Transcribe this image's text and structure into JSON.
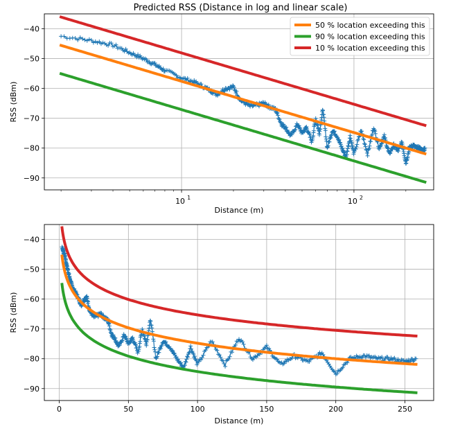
{
  "figure_title": "Predicted RSS (Distance in log and linear scale)",
  "colors": {
    "measured": "#1f77b4",
    "p50": "#ff7f0e",
    "p90": "#2ca02c",
    "p10": "#d62728"
  },
  "chart_data": [
    {
      "type": "line",
      "title": "Predicted RSS (Distance in log and linear scale)",
      "xlabel": "Distance (m)",
      "ylabel": "RSS (dBm)",
      "xscale": "log",
      "xlim": [
        1.6,
        290
      ],
      "ylim": [
        -94,
        -35
      ],
      "yticks": [
        -40,
        -50,
        -60,
        -70,
        -80,
        -90
      ],
      "xticks_labels": [
        {
          "value": 10,
          "base": "10",
          "exp": "1"
        },
        {
          "value": 100,
          "base": "10",
          "exp": "2"
        }
      ],
      "grid": true,
      "legend": "top-right",
      "legend_entries": [
        "50 % location exceeding this",
        "90 % location exceeding this",
        "10 % location exceeding this"
      ],
      "series": [
        {
          "name": "",
          "kind": "measured",
          "marker": "+",
          "x": [
            2,
            3,
            4,
            5,
            6,
            7,
            8,
            10,
            12,
            14,
            16,
            18,
            20,
            22,
            25,
            28,
            30,
            32,
            35,
            38,
            40,
            43,
            47,
            50,
            53,
            57,
            60,
            63,
            66,
            70,
            75,
            80,
            85,
            90,
            95,
            100,
            110,
            120,
            130,
            140,
            150,
            160,
            170,
            180,
            190,
            200,
            210,
            220,
            230,
            240,
            250,
            258
          ],
          "y": [
            -42.5,
            -44,
            -45.5,
            -48,
            -50,
            -52,
            -54,
            -56.5,
            -58,
            -60,
            -62,
            -60,
            -59.5,
            -64,
            -66,
            -65.5,
            -65,
            -66,
            -67,
            -72,
            -73,
            -76,
            -72,
            -75,
            -73,
            -78,
            -70,
            -75,
            -67,
            -80,
            -74,
            -76,
            -80,
            -83,
            -76,
            -82,
            -74,
            -82,
            -73,
            -80,
            -76,
            -82,
            -79,
            -81,
            -78,
            -85,
            -80,
            -79,
            -80,
            -80,
            -81,
            -80
          ]
        },
        {
          "name": "50 % location exceeding this",
          "kind": "p50",
          "model": {
            "y_at_1m": -40.4,
            "slope_per_decade": -17.2
          }
        },
        {
          "name": "90 % location exceeding this",
          "kind": "p90",
          "model": {
            "y_at_1m": -49.9,
            "slope_per_decade": -17.2
          }
        },
        {
          "name": "10 % location exceeding this",
          "kind": "p10",
          "model": {
            "y_at_1m": -30.9,
            "slope_per_decade": -17.2
          }
        }
      ],
      "x_range": [
        2,
        258
      ]
    },
    {
      "type": "line",
      "title": "",
      "xlabel": "Distance (m)",
      "ylabel": "RSS (dBm)",
      "xscale": "linear",
      "xlim": [
        -10.8,
        270.8
      ],
      "ylim": [
        -94,
        -35
      ],
      "yticks": [
        -40,
        -50,
        -60,
        -70,
        -80,
        -90
      ],
      "xticks": [
        0,
        50,
        100,
        150,
        200,
        250
      ],
      "grid": true,
      "legend": "none",
      "series_ref": "same data as the top panel, plotted against a linear distance axis"
    }
  ]
}
